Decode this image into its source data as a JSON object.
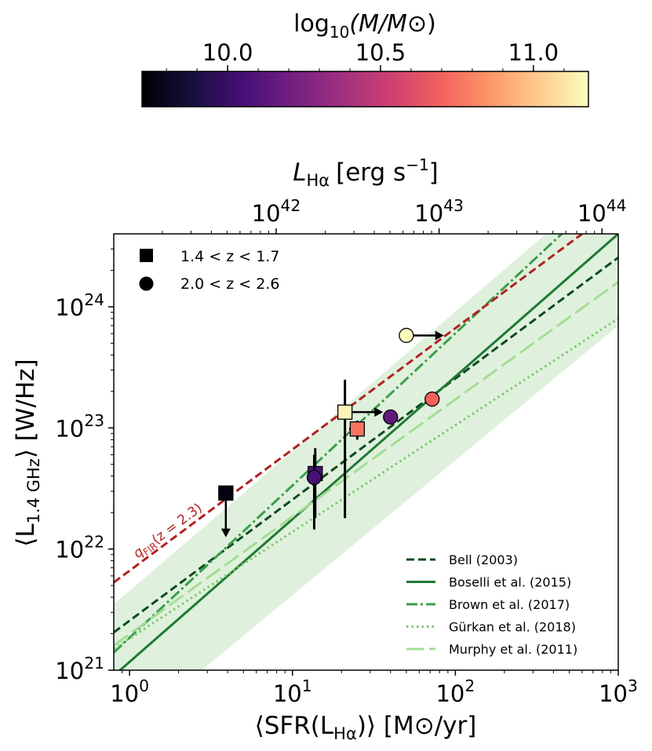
{
  "colorbar": {
    "label_prefix": "log",
    "label_sub": "10",
    "label_rest": "(M/M",
    "label_sun": "⊙",
    "label_close": ")",
    "range": [
      9.72,
      11.18
    ],
    "ticks": [
      {
        "value": 10.0,
        "label": "10.0"
      },
      {
        "value": 10.5,
        "label": "10.5"
      },
      {
        "value": 11.0,
        "label": "11.0"
      }
    ],
    "minor_ticks": [
      9.8,
      9.9,
      10.1,
      10.2,
      10.3,
      10.4,
      10.6,
      10.7,
      10.8,
      10.9,
      11.1
    ],
    "colormap": [
      "#000004",
      "#180f3d",
      "#440f76",
      "#721f81",
      "#9e2f7f",
      "#cd4071",
      "#f1605d",
      "#fd9668",
      "#feca8d",
      "#fcfdbf"
    ]
  },
  "chart_data": {
    "type": "scatter",
    "xscale": "log",
    "yscale": "log",
    "xlim": [
      0.8,
      1000
    ],
    "ylim": [
      1e+21,
      4e+24
    ],
    "xlabel": "⟨SFR(L",
    "xlabel_sub": "Hα",
    "xlabel_rest": ")⟩ [M",
    "xlabel_sun": "⊙",
    "xlabel_end": "/yr]",
    "ylabel": "⟨L",
    "ylabel_sub": "1.4 GHz",
    "ylabel_rest": "⟩ [W/Hz]",
    "top_axis": {
      "label": "L",
      "label_sub": "Hα",
      "label_units": "[erg s",
      "label_exp": "−1",
      "label_end": "]",
      "conversion_log_offset": 41.1,
      "ticks": [
        {
          "value": 1e+42,
          "base": "10",
          "exp": "42"
        },
        {
          "value": 1e+43,
          "base": "10",
          "exp": "43"
        },
        {
          "value": 1e+44,
          "base": "10",
          "exp": "44"
        }
      ]
    },
    "x_ticks": [
      {
        "value": 1,
        "base": "10",
        "exp": "0"
      },
      {
        "value": 10,
        "base": "10",
        "exp": "1"
      },
      {
        "value": 100,
        "base": "10",
        "exp": "2"
      },
      {
        "value": 1000,
        "base": "10",
        "exp": "3"
      }
    ],
    "y_ticks": [
      {
        "value": 1e+21,
        "base": "10",
        "exp": "21"
      },
      {
        "value": 1e+22,
        "base": "10",
        "exp": "22"
      },
      {
        "value": 1e+23,
        "base": "10",
        "exp": "23"
      },
      {
        "value": 1e+24,
        "base": "10",
        "exp": "24"
      }
    ],
    "points": [
      {
        "marker": "square",
        "sfr": 3.9,
        "lum": 2.9e+22,
        "logmass": 9.75,
        "upper_limit": true,
        "arrow_to": 1.25e+22
      },
      {
        "marker": "square",
        "sfr": 13.8,
        "lum": 4.2e+22,
        "logmass": 10.08,
        "yerr": [
          1.8e+22,
          6.8e+22
        ]
      },
      {
        "marker": "circle",
        "sfr": 13.6,
        "lum": 3.9e+22,
        "logmass": 10.05,
        "yerr": [
          1.45e+22,
          6e+22
        ]
      },
      {
        "marker": "square",
        "sfr": 21.0,
        "lum": 1.35e+23,
        "logmass": 11.15,
        "yerr": [
          1.8e+22,
          2.5e+23
        ],
        "lower_limit_x": true,
        "arrow_to_x": 36
      },
      {
        "marker": "square",
        "sfr": 25.0,
        "lum": 9.8e+22,
        "logmass": 10.75,
        "xerr": [
          22.3,
          27.8
        ],
        "yerr": [
          8e+22,
          1.15e+23
        ]
      },
      {
        "marker": "circle",
        "sfr": 40.0,
        "lum": 1.23e+23,
        "logmass": 10.15,
        "yerr": [
          1.1e+23,
          1.4e+23
        ]
      },
      {
        "marker": "circle",
        "sfr": 72.0,
        "lum": 1.73e+23,
        "logmass": 10.7,
        "yerr": [
          1.5e+23,
          1.95e+23
        ]
      },
      {
        "marker": "circle",
        "sfr": 50.0,
        "lum": 5.8e+23,
        "logmass": 11.2,
        "lower_limit_x": true,
        "arrow_to_x": 85
      }
    ],
    "relations": [
      {
        "name": "Bell (2003)",
        "x": [
          0.8,
          1000
        ],
        "y": [
          2.05e+21,
          2.55e+24
        ],
        "style": "dashed",
        "color": "#0f4a22"
      },
      {
        "name": "Boselli et al. (2015)",
        "x": [
          0.8,
          1000
        ],
        "y": [
          9e+20,
          4e+24
        ],
        "style": "solid",
        "color": "#1e7a34"
      },
      {
        "name": "Brown et al. (2017)",
        "x": [
          0.8,
          450
        ],
        "y": [
          1.4e+21,
          4e+24
        ],
        "style": "dashdot",
        "color": "#3b9e4d"
      },
      {
        "name": "Gürkan et al. (2018)",
        "x": [
          0.8,
          1000
        ],
        "y": [
          1.5e+21,
          8e+23
        ],
        "style": "dotted",
        "color": "#7bc96f"
      },
      {
        "name": "Murphy et al. (2011)",
        "x": [
          0.8,
          1000
        ],
        "y": [
          1.6e+21,
          1.6e+24
        ],
        "style": "longdash",
        "color": "#a6dc97"
      }
    ],
    "band": {
      "x": [
        0.8,
        1000
      ],
      "y_low": [
        2.5e+20,
        7e+23
      ],
      "y_high": [
        3.5e+21,
        1.3e+25
      ],
      "color": "#d7eed3"
    },
    "qfir_line": {
      "x": [
        0.8,
        600
      ],
      "y": [
        5.3e+21,
        4e+24
      ],
      "color": "#b22222"
    },
    "qfir_label": {
      "q": "q",
      "sub": "FIR",
      "rest": "(z = 2.3)"
    },
    "legend_markers": [
      {
        "marker": "square",
        "label": "1.4 < z < 1.7"
      },
      {
        "marker": "circle",
        "label": "2.0 < z < 2.6"
      }
    ]
  }
}
